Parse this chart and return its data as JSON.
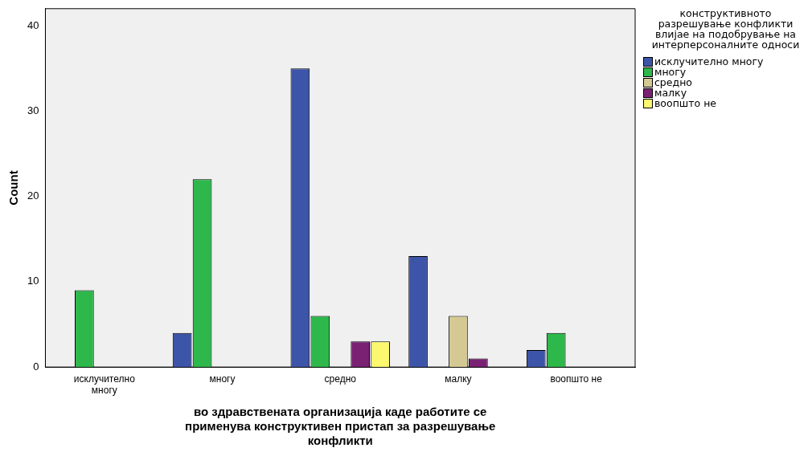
{
  "chart_data": {
    "type": "bar",
    "xlabel": "во здравствената организација каде работите се применува конструктивен пристап за разрешување конфликти",
    "ylabel": "Count",
    "legend_title": "конструктивното разрешување конфликти влијае на подобрување на интерперсоналните односи",
    "categories": [
      "исклучително многу",
      "многу",
      "средно",
      "малку",
      "воопшто не"
    ],
    "series": [
      {
        "name": "исклучително многу",
        "color": "#3d55a8",
        "values": [
          0,
          4,
          35,
          13,
          2
        ]
      },
      {
        "name": "многу",
        "color": "#2eb84b",
        "values": [
          9,
          22,
          6,
          0,
          4
        ]
      },
      {
        "name": "средно",
        "color": "#d5c993",
        "values": [
          0,
          0,
          0,
          6,
          0
        ]
      },
      {
        "name": "малку",
        "color": "#7a2173",
        "values": [
          0,
          0,
          3,
          1,
          0
        ]
      },
      {
        "name": "воопшто не",
        "color": "#fbf76f",
        "values": [
          0,
          0,
          3,
          0,
          0
        ]
      }
    ],
    "ylim": [
      0,
      42
    ],
    "yticks": [
      0,
      10,
      20,
      30,
      40
    ],
    "grid": false,
    "legend": "right"
  }
}
